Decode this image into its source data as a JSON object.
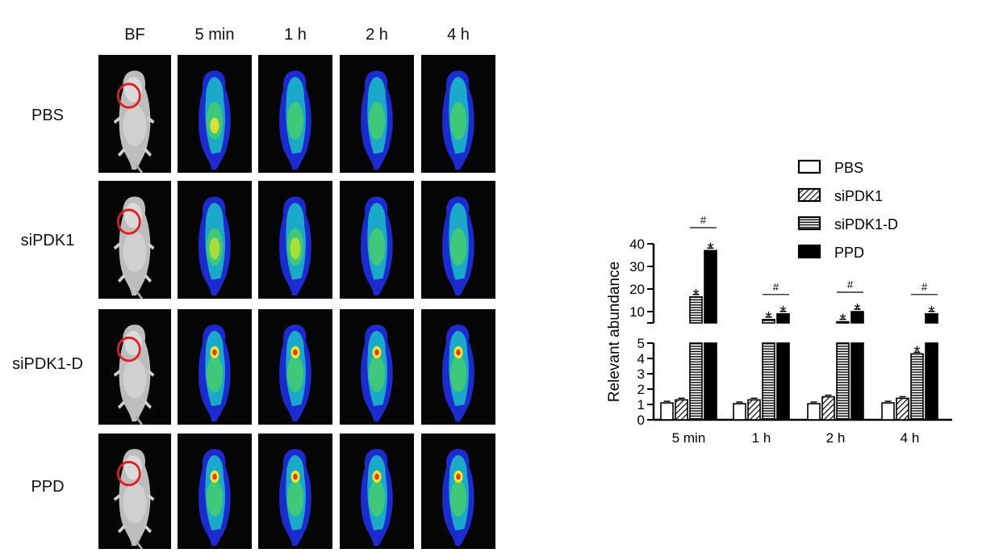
{
  "imaging": {
    "columns": [
      "BF",
      "5 min",
      "1 h",
      "2 h",
      "4 h"
    ],
    "rows": [
      "PBS",
      "siPDK1",
      "siPDK1-D",
      "PPD"
    ]
  },
  "chart_data": {
    "type": "bar",
    "categories": [
      "5 min",
      "1 h",
      "2 h",
      "4 h"
    ],
    "ylabel": "Relevant abundance",
    "ylim_lower": [
      0,
      5
    ],
    "ylim_upper": [
      5,
      40
    ],
    "yticks_lower": [
      "0",
      "1",
      "2",
      "3",
      "4",
      "5"
    ],
    "yticks_upper": [
      "10",
      "20",
      "30",
      "40"
    ],
    "legend_position": "top-right",
    "series": [
      {
        "name": "PBS",
        "values": [
          1.1,
          1.05,
          1.05,
          1.1
        ],
        "pattern": "white"
      },
      {
        "name": "siPDK1",
        "values": [
          1.3,
          1.3,
          1.5,
          1.4
        ],
        "pattern": "diagonal"
      },
      {
        "name": "siPDK1-D",
        "values": [
          16.5,
          6.5,
          5.5,
          4.3
        ],
        "pattern": "horizontal"
      },
      {
        "name": "PPD",
        "values": [
          37,
          9,
          10,
          9
        ],
        "pattern": "black"
      }
    ],
    "annotations": {
      "star": "*",
      "hash": "#",
      "stars": [
        [
          0,
          2
        ],
        [
          0,
          3
        ],
        [
          1,
          2
        ],
        [
          1,
          3
        ],
        [
          2,
          2
        ],
        [
          2,
          3
        ],
        [
          3,
          2
        ],
        [
          3,
          3
        ]
      ],
      "hashes": [
        0,
        1,
        2,
        3
      ]
    }
  }
}
